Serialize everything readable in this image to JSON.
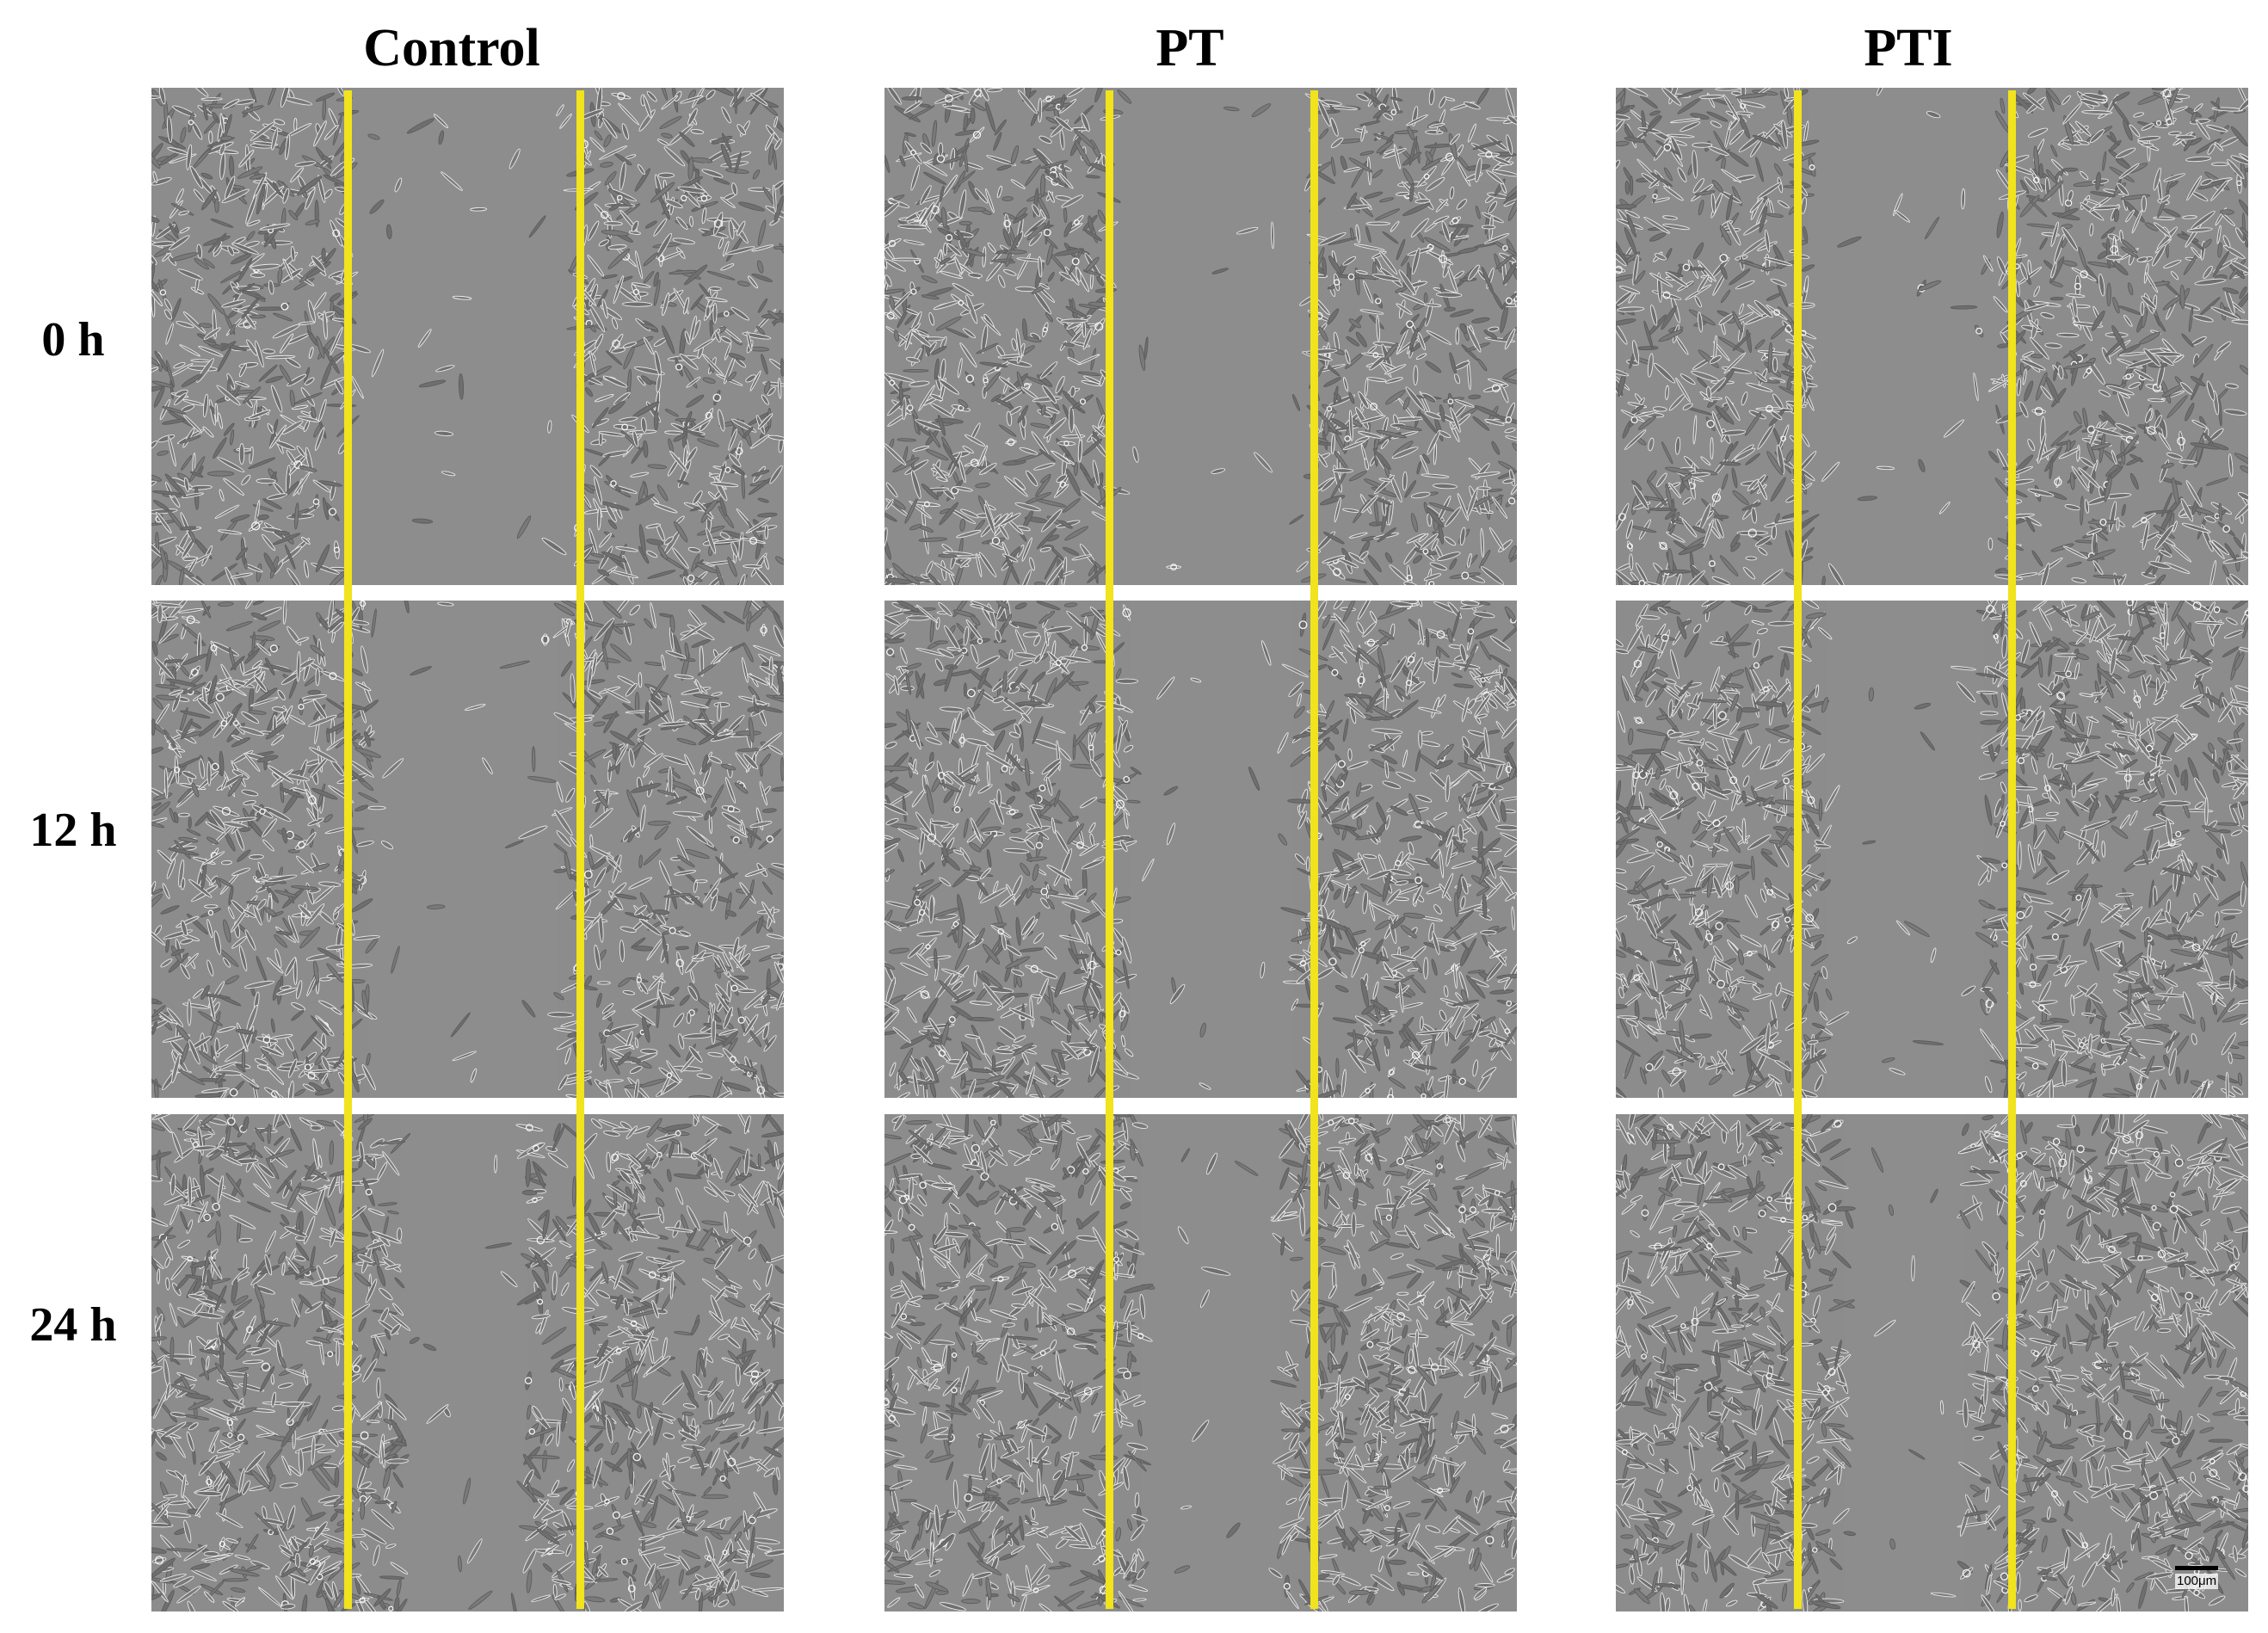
{
  "columns": [
    {
      "title": "Control"
    },
    {
      "title": "PT"
    },
    {
      "title": "PTI"
    }
  ],
  "rows": [
    {
      "label": "0 h"
    },
    {
      "label": "12 h"
    },
    {
      "label": "24 h"
    }
  ],
  "scale_bar": {
    "label": "100μm"
  },
  "colors": {
    "background": "#ffffff",
    "guide_line": "#f1e31c",
    "panel_gray": "#8a8a8a",
    "cell_outline": "#ececec",
    "cell_shadow": "#5a5a5a"
  },
  "panels": [
    {
      "group": "Control",
      "time": "0 h",
      "gap_fraction": 0.36
    },
    {
      "group": "Control",
      "time": "12 h",
      "gap_fraction": 0.3
    },
    {
      "group": "Control",
      "time": "24 h",
      "gap_fraction": 0.2
    },
    {
      "group": "PT",
      "time": "0 h",
      "gap_fraction": 0.32
    },
    {
      "group": "PT",
      "time": "12 h",
      "gap_fraction": 0.26
    },
    {
      "group": "PT",
      "time": "24 h",
      "gap_fraction": 0.22
    },
    {
      "group": "PTI",
      "time": "0 h",
      "gap_fraction": 0.3
    },
    {
      "group": "PTI",
      "time": "12 h",
      "gap_fraction": 0.25
    },
    {
      "group": "PTI",
      "time": "24 h",
      "gap_fraction": 0.19
    }
  ]
}
